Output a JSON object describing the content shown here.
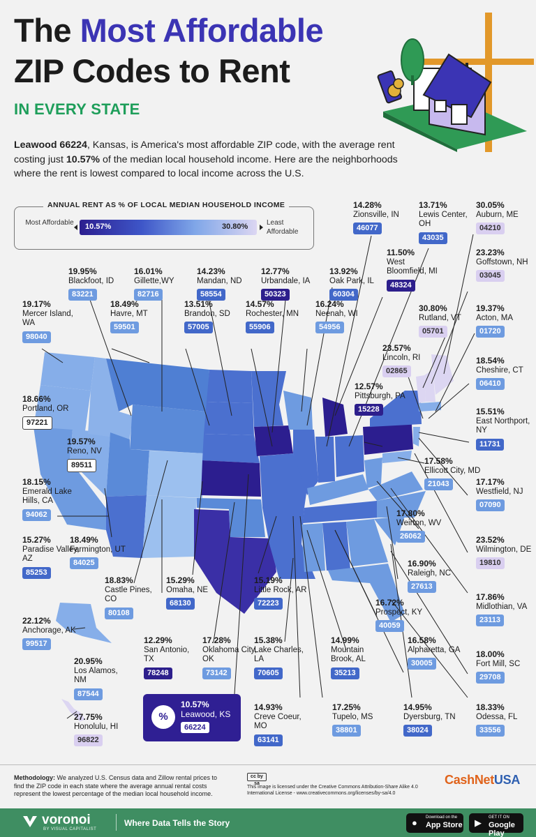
{
  "title": {
    "line1_pre": "The",
    "line1_highlight": "Most Affordable",
    "line2": "ZIP Codes to Rent"
  },
  "subtitle": "IN EVERY STATE",
  "intro": {
    "bold": "Leawood 66224",
    "text1": ", Kansas, is America's most affordable ZIP code, with the average rent costing just ",
    "bold2": "10.57%",
    "text2": " of the median local household income. Here are the neighborhoods where the rent is lowest compared to local income across the U.S."
  },
  "legend": {
    "title": "ANNUAL RENT AS % OF LOCAL MEDIAN HOUSEHOLD INCOME",
    "left_label": "Most Affordable",
    "right_label": "Least Affordable",
    "min": "10.57%",
    "max": "30.80%",
    "colors": [
      "#2c1e8f",
      "#3e56c8",
      "#7fa6e8",
      "#dcd6f2"
    ]
  },
  "chart_data": {
    "type": "table",
    "title": "The Most Affordable ZIP Codes to Rent",
    "subtitle": "IN EVERY STATE",
    "rows": [
      {
        "state": "ID",
        "pct": "19.95%",
        "place": "Blackfoot, ID",
        "zip": "83221",
        "tone": "light"
      },
      {
        "state": "WY",
        "pct": "16.01%",
        "place": "Gillette,WY",
        "zip": "82716",
        "tone": "light"
      },
      {
        "state": "ND",
        "pct": "14.23%",
        "place": "Mandan, ND",
        "zip": "58554",
        "tone": "mid"
      },
      {
        "state": "IA",
        "pct": "12.77%",
        "place": "Urbandale, IA",
        "zip": "50323",
        "tone": "dark"
      },
      {
        "state": "IL",
        "pct": "13.92%",
        "place": "Oak Park, IL",
        "zip": "60304",
        "tone": "mid"
      },
      {
        "state": "IN",
        "pct": "14.28%",
        "place": "Zionsville, IN",
        "zip": "46077",
        "tone": "mid"
      },
      {
        "state": "OH",
        "pct": "13.71%",
        "place": "Lewis Center, OH",
        "zip": "43035",
        "tone": "mid"
      },
      {
        "state": "ME",
        "pct": "30.05%",
        "place": "Auburn, ME",
        "zip": "04210",
        "tone": "pale"
      },
      {
        "state": "MI",
        "pct": "11.50%",
        "place": "West Bloomfield, MI",
        "zip": "48324",
        "tone": "dark"
      },
      {
        "state": "NH",
        "pct": "23.23%",
        "place": "Goffstown, NH",
        "zip": "03045",
        "tone": "pale"
      },
      {
        "state": "WA",
        "pct": "19.17%",
        "place": "Mercer Island, WA",
        "zip": "98040",
        "tone": "light"
      },
      {
        "state": "MT",
        "pct": "18.49%",
        "place": "Havre, MT",
        "zip": "59501",
        "tone": "light"
      },
      {
        "state": "SD",
        "pct": "13.51%",
        "place": "Brandon, SD",
        "zip": "57005",
        "tone": "mid"
      },
      {
        "state": "MN",
        "pct": "14.57%",
        "place": "Rochester, MN",
        "zip": "55906",
        "tone": "mid"
      },
      {
        "state": "WI",
        "pct": "16.24%",
        "place": "Neenah, WI",
        "zip": "54956",
        "tone": "light"
      },
      {
        "state": "VT",
        "pct": "30.80%",
        "place": "Rutland, VT",
        "zip": "05701",
        "tone": "pale"
      },
      {
        "state": "MA",
        "pct": "19.37%",
        "place": "Acton, MA",
        "zip": "01720",
        "tone": "light"
      },
      {
        "state": "RI",
        "pct": "23.57%",
        "place": "Lincoln, RI",
        "zip": "02865",
        "tone": "pale"
      },
      {
        "state": "CT",
        "pct": "18.54%",
        "place": "Cheshire, CT",
        "zip": "06410",
        "tone": "light"
      },
      {
        "state": "OR",
        "pct": "18.66%",
        "place": "Portland, OR",
        "zip": "97221",
        "tone": "outline"
      },
      {
        "state": "PA",
        "pct": "12.57%",
        "place": "Pittsburgh, PA",
        "zip": "15228",
        "tone": "dark"
      },
      {
        "state": "NY",
        "pct": "15.51%",
        "place": "East Northport, NY",
        "zip": "11731",
        "tone": "mid"
      },
      {
        "state": "NV",
        "pct": "19.57%",
        "place": "Reno, NV",
        "zip": "89511",
        "tone": "outline"
      },
      {
        "state": "MD",
        "pct": "17.58%",
        "place": "Ellicott City, MD",
        "zip": "21043",
        "tone": "light"
      },
      {
        "state": "CA",
        "pct": "18.15%",
        "place": "Emerald Lake Hills, CA",
        "zip": "94062",
        "tone": "light"
      },
      {
        "state": "NJ",
        "pct": "17.17%",
        "place": "Westfield, NJ",
        "zip": "07090",
        "tone": "light"
      },
      {
        "state": "WV",
        "pct": "17.80%",
        "place": "Weirton, WV",
        "zip": "26062",
        "tone": "light"
      },
      {
        "state": "AZ",
        "pct": "15.27%",
        "place": "Paradise Valley, AZ",
        "zip": "85253",
        "tone": "mid"
      },
      {
        "state": "UT",
        "pct": "18.49%",
        "place": "Farmington, UT",
        "zip": "84025",
        "tone": "light"
      },
      {
        "state": "DE",
        "pct": "23.52%",
        "place": "Wilmington, DE",
        "zip": "19810",
        "tone": "pale"
      },
      {
        "state": "NC",
        "pct": "16.90%",
        "place": "Raleigh, NC",
        "zip": "27613",
        "tone": "light"
      },
      {
        "state": "CO",
        "pct": "18.83%",
        "place": "Castle Pines, CO",
        "zip": "80108",
        "tone": "light"
      },
      {
        "state": "NE",
        "pct": "15.29%",
        "place": "Omaha, NE",
        "zip": "68130",
        "tone": "mid"
      },
      {
        "state": "AR",
        "pct": "15.19%",
        "place": "Little Rock, AR",
        "zip": "72223",
        "tone": "mid"
      },
      {
        "state": "KY",
        "pct": "16.72%",
        "place": "Prospect, KY",
        "zip": "40059",
        "tone": "light"
      },
      {
        "state": "VA",
        "pct": "17.86%",
        "place": "Midlothian, VA",
        "zip": "23113",
        "tone": "light"
      },
      {
        "state": "AK",
        "pct": "22.12%",
        "place": "Anchorage, AK",
        "zip": "99517",
        "tone": "light"
      },
      {
        "state": "TX",
        "pct": "12.29%",
        "place": "San Antonio, TX",
        "zip": "78248",
        "tone": "dark"
      },
      {
        "state": "OK",
        "pct": "17.28%",
        "place": "Oklahoma City, OK",
        "zip": "73142",
        "tone": "light"
      },
      {
        "state": "LA",
        "pct": "15.38%",
        "place": "Lake Charles, LA",
        "zip": "70605",
        "tone": "mid"
      },
      {
        "state": "AL",
        "pct": "14.99%",
        "place": "Mountain Brook, AL",
        "zip": "35213",
        "tone": "mid"
      },
      {
        "state": "GA",
        "pct": "16.58%",
        "place": "Alpharetta, GA",
        "zip": "30005",
        "tone": "light"
      },
      {
        "state": "SC",
        "pct": "18.00%",
        "place": "Fort Mill, SC",
        "zip": "29708",
        "tone": "light"
      },
      {
        "state": "NM",
        "pct": "20.95%",
        "place": "Los Alamos, NM",
        "zip": "87544",
        "tone": "light"
      },
      {
        "state": "KS",
        "pct": "10.57%",
        "place": "Leawood, KS",
        "zip": "66224",
        "tone": "dark"
      },
      {
        "state": "MO",
        "pct": "14.93%",
        "place": "Creve Coeur, MO",
        "zip": "63141",
        "tone": "mid"
      },
      {
        "state": "MS",
        "pct": "17.25%",
        "place": "Tupelo, MS",
        "zip": "38801",
        "tone": "light"
      },
      {
        "state": "TN",
        "pct": "14.95%",
        "place": "Dyersburg, TN",
        "zip": "38024",
        "tone": "mid"
      },
      {
        "state": "FL",
        "pct": "18.33%",
        "place": "Odessa, FL",
        "zip": "33556",
        "tone": "light"
      },
      {
        "state": "HI",
        "pct": "27.75%",
        "place": "Honolulu, HI",
        "zip": "96822",
        "tone": "pale"
      }
    ]
  },
  "methodology": {
    "bold": "Methodology:",
    "text": " We analyzed U.S. Census data and Zillow rental prices to find the ZIP code in each state where the average annual rental costs represent the lowest percentage of the median local household income."
  },
  "license": "This image is licensed under the Creative Commons Attribution-Share Alike 4.0 International License - www.creativecommons.org/licenses/by-sa/4.0",
  "sponsor": {
    "part1": "CashNet",
    "part2": "USA"
  },
  "footer": {
    "brand": "voronoi",
    "by": "BY VISUAL CAPITALIST",
    "tagline": "Where Data Tells the Story",
    "appstore_small": "Download on the",
    "appstore": "App Store",
    "googleplay_small": "GET IT ON",
    "googleplay": "Google Play"
  }
}
